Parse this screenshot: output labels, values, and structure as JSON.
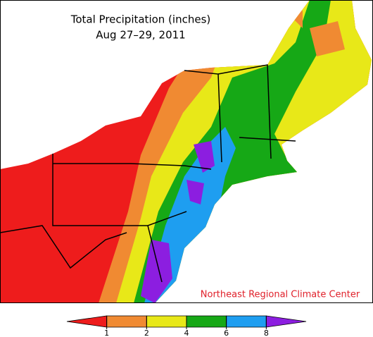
{
  "title": "Total Precipitation (inches)",
  "subtitle": "Aug 27–29, 2011",
  "credit": "Northeast Regional Climate Center",
  "legend": {
    "colors": [
      "#ee1c1c",
      "#f08a32",
      "#e8e818",
      "#16a816",
      "#1e9ef0",
      "#8c1ee0"
    ],
    "ticks": [
      1,
      2,
      4,
      6,
      8
    ]
  }
}
